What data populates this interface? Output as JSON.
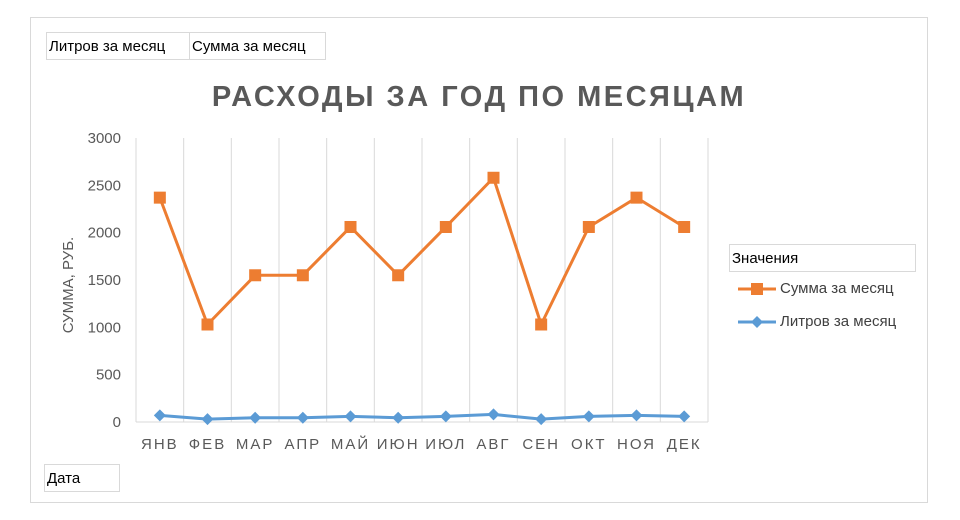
{
  "field_buttons": {
    "liters": "Литров за месяц",
    "sum": "Сумма за месяц",
    "date": "Дата"
  },
  "legend": {
    "title": "Значения",
    "items": [
      "Сумма за месяц",
      "Литров за месяц"
    ]
  },
  "colors": {
    "sum": "#ed7d31",
    "liters": "#5b9bd5",
    "grid": "#d9d9d9",
    "text": "#595959"
  },
  "chart_data": {
    "type": "line",
    "title": "РАСХОДЫ ЗА ГОД ПО МЕСЯЦАМ",
    "xlabel": "",
    "ylabel": "СУММА, РУБ.",
    "ylim": [
      0,
      3000
    ],
    "yticks": [
      0,
      500,
      1000,
      1500,
      2000,
      2500,
      3000
    ],
    "grid": "vertical",
    "legend_position": "right",
    "categories": [
      "ЯНВ",
      "ФЕВ",
      "МАР",
      "АПР",
      "МАЙ",
      "ИЮН",
      "ИЮЛ",
      "АВГ",
      "СЕН",
      "ОКТ",
      "НОЯ",
      "ДЕК"
    ],
    "series": [
      {
        "name": "Сумма за месяц",
        "marker": "square",
        "color": "#ed7d31",
        "values": [
          2370,
          1030,
          1550,
          1550,
          2060,
          1550,
          2060,
          2580,
          1030,
          2060,
          2370,
          2060
        ]
      },
      {
        "name": "Литров за месяц",
        "marker": "diamond",
        "color": "#5b9bd5",
        "values": [
          70,
          30,
          45,
          45,
          60,
          45,
          60,
          80,
          30,
          60,
          70,
          60
        ]
      }
    ]
  }
}
